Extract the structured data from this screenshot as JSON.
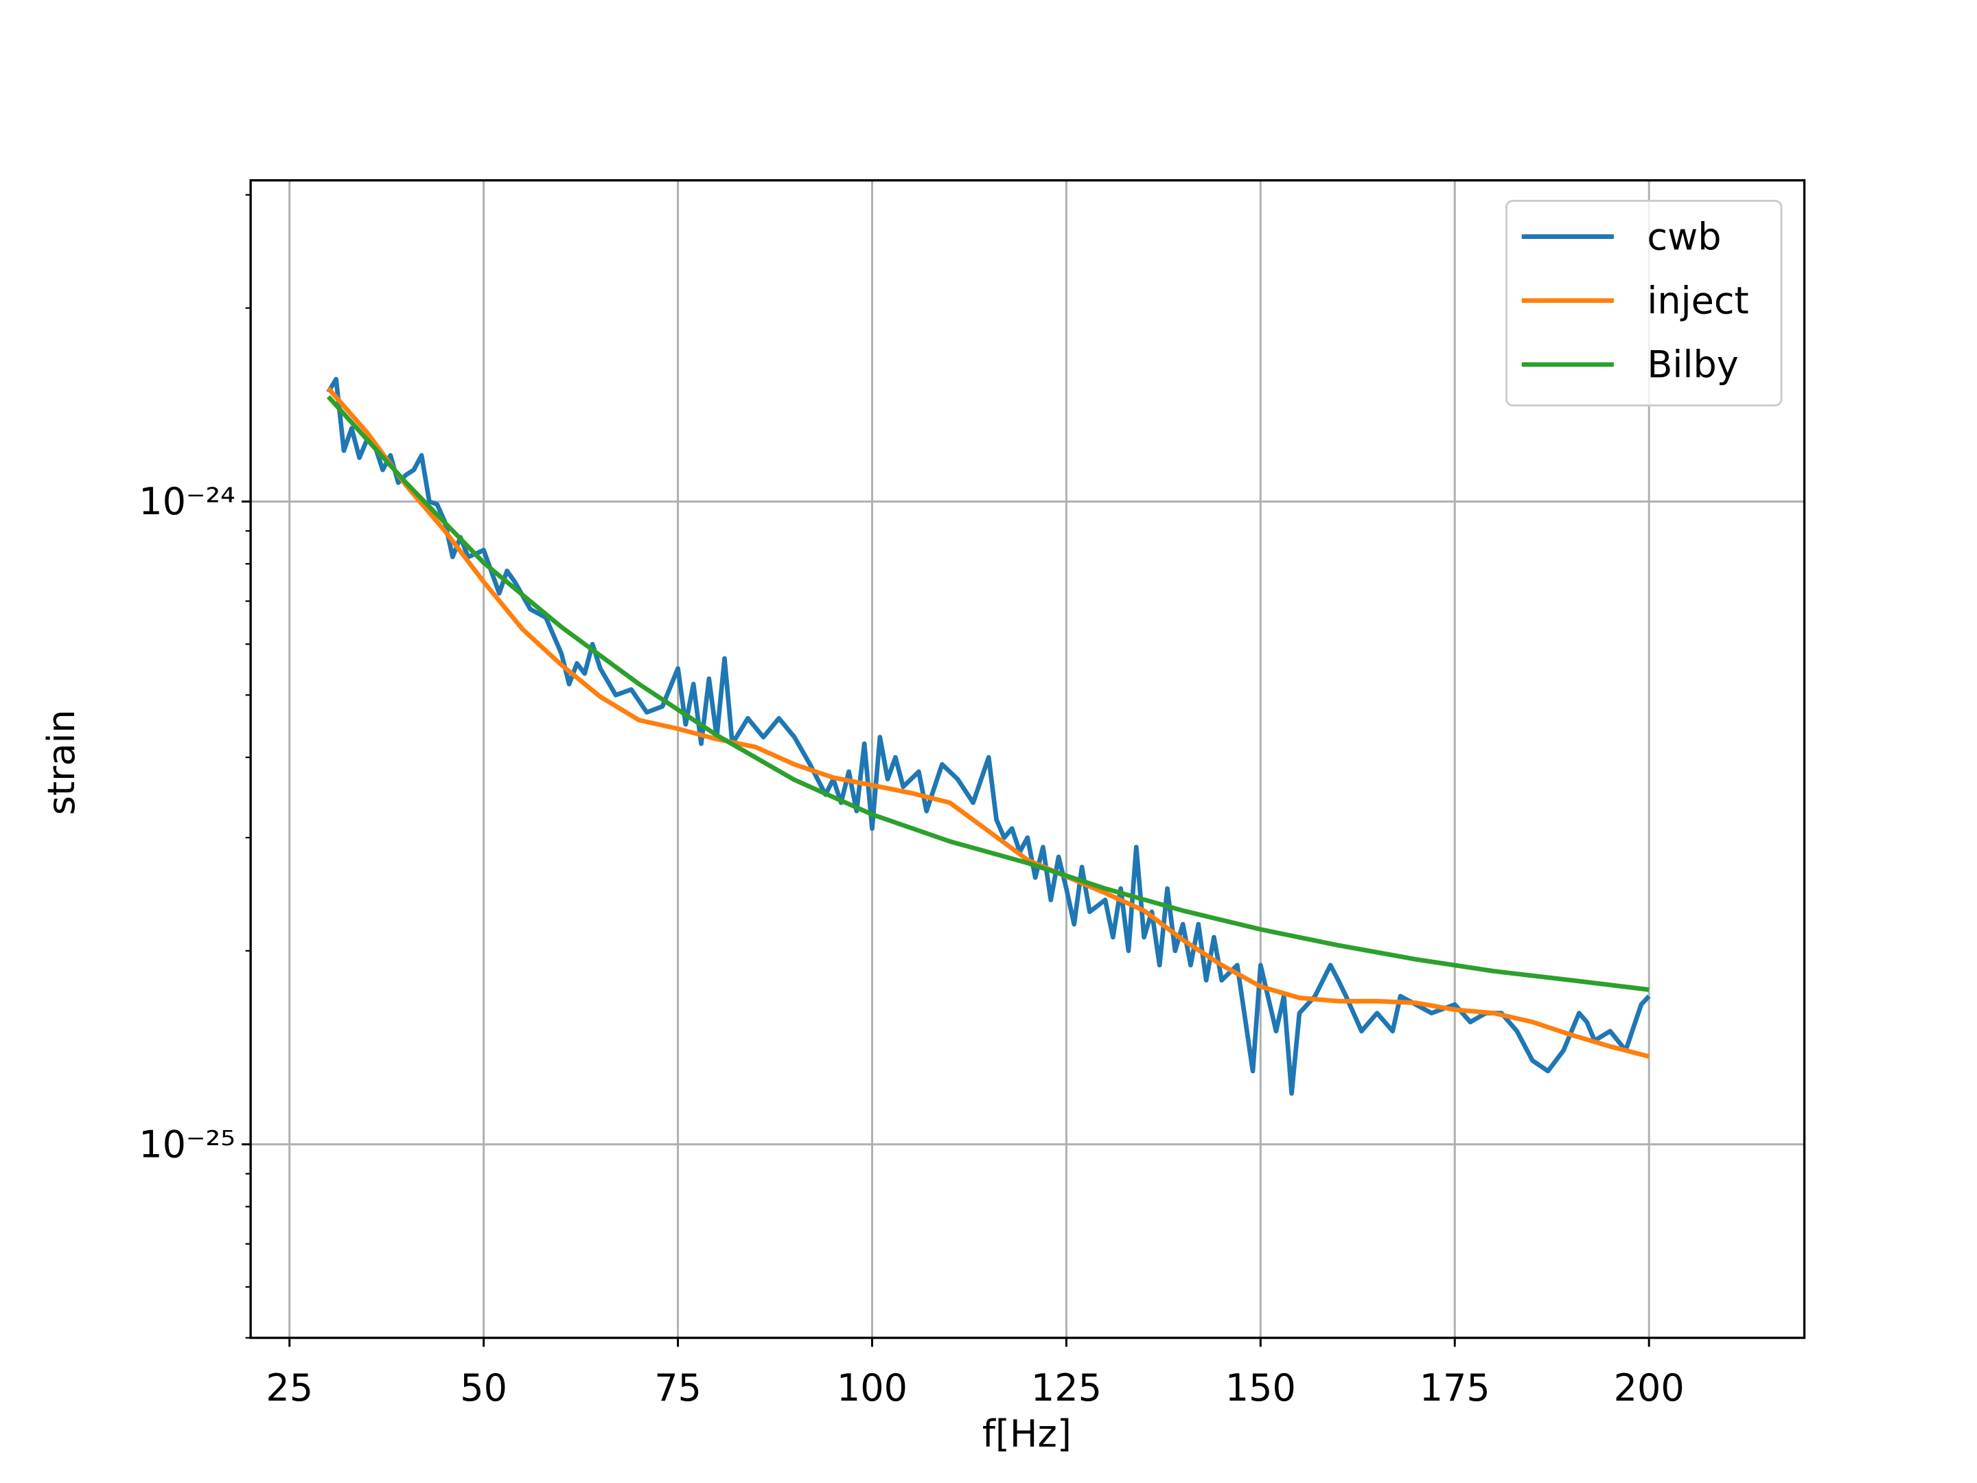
{
  "chart_data": {
    "type": "line",
    "xlabel": "f[Hz]",
    "ylabel": "strain",
    "xlim": [
      20,
      220
    ],
    "xticks": [
      25,
      50,
      75,
      100,
      125,
      150,
      175,
      200
    ],
    "ylim": [
      5e-26,
      3.16e-24
    ],
    "log_y": true,
    "yticks": [
      {
        "value": 1e-25,
        "label": "10⁻²⁵"
      },
      {
        "value": 1e-24,
        "label": "10⁻²⁴"
      }
    ],
    "yminor_ticks": [
      5e-26,
      6e-26,
      7e-26,
      8e-26,
      9e-26,
      2e-25,
      3e-25,
      4e-25,
      5e-25,
      6e-25,
      7e-25,
      8e-25,
      9e-25,
      2e-24,
      3e-24
    ],
    "grid": true,
    "legend": "upper right",
    "series": [
      {
        "name": "cwb",
        "color": "#1f77b4",
        "x": [
          30,
          31,
          32,
          33,
          34,
          35,
          36,
          37,
          38,
          39,
          40,
          41,
          42,
          43,
          44,
          45,
          46,
          47,
          48,
          50,
          52,
          53,
          54,
          56,
          58,
          60,
          61,
          62,
          63,
          64,
          65,
          67,
          69,
          71,
          73,
          75,
          76,
          77,
          78,
          79,
          80,
          81,
          82,
          84,
          86,
          88,
          90,
          92,
          94,
          95,
          96,
          97,
          98,
          99,
          100,
          101,
          102,
          103,
          104,
          106,
          107,
          109,
          111,
          113,
          115,
          116,
          117,
          118,
          119,
          120,
          121,
          122,
          123,
          124,
          125,
          126,
          127,
          128,
          130,
          131,
          132,
          133,
          134,
          135,
          136,
          137,
          138,
          139,
          140,
          141,
          142,
          143,
          144,
          145,
          147,
          149,
          150,
          152,
          153,
          154,
          155,
          157,
          159,
          160,
          161,
          163,
          165,
          167,
          168,
          170,
          172,
          175,
          177,
          179,
          181,
          183,
          185,
          187,
          189,
          191,
          192,
          193,
          195,
          197,
          199,
          200
        ],
        "values": [
          1.48e-24,
          1.55e-24,
          1.2e-24,
          1.3e-24,
          1.17e-24,
          1.25e-24,
          1.22e-24,
          1.12e-24,
          1.18e-24,
          1.07e-24,
          1.1e-24,
          1.12e-24,
          1.18e-24,
          1e-24,
          9.9e-25,
          9.3e-25,
          8.2e-25,
          8.8e-25,
          8.2e-25,
          8.4e-25,
          7.2e-25,
          7.8e-25,
          7.5e-25,
          6.8e-25,
          6.6e-25,
          5.8e-25,
          5.2e-25,
          5.6e-25,
          5.4e-25,
          6e-25,
          5.5e-25,
          5e-25,
          5.1e-25,
          4.7e-25,
          4.8e-25,
          5.5e-25,
          4.5e-25,
          5.2e-25,
          4.2e-25,
          5.3e-25,
          4.3e-25,
          5.7e-25,
          4.2e-25,
          4.6e-25,
          4.3e-25,
          4.6e-25,
          4.3e-25,
          3.9e-25,
          3.5e-25,
          3.7e-25,
          3.4e-25,
          3.8e-25,
          3.3e-25,
          4.2e-25,
          3.1e-25,
          4.3e-25,
          3.7e-25,
          4e-25,
          3.6e-25,
          3.8e-25,
          3.3e-25,
          3.9e-25,
          3.7e-25,
          3.4e-25,
          4e-25,
          3.2e-25,
          3e-25,
          3.1e-25,
          2.85e-25,
          3e-25,
          2.6e-25,
          2.9e-25,
          2.4e-25,
          2.8e-25,
          2.5e-25,
          2.2e-25,
          2.7e-25,
          2.3e-25,
          2.4e-25,
          2.1e-25,
          2.5e-25,
          2e-25,
          2.9e-25,
          2.1e-25,
          2.3e-25,
          1.9e-25,
          2.5e-25,
          2e-25,
          2.2e-25,
          1.9e-25,
          2.2e-25,
          1.8e-25,
          2.1e-25,
          1.8e-25,
          1.9e-25,
          1.3e-25,
          1.9e-25,
          1.5e-25,
          1.7e-25,
          1.2e-25,
          1.6e-25,
          1.7e-25,
          1.9e-25,
          1.8e-25,
          1.7e-25,
          1.5e-25,
          1.6e-25,
          1.5e-25,
          1.7e-25,
          1.65e-25,
          1.6e-25,
          1.65e-25,
          1.55e-25,
          1.6e-25,
          1.6e-25,
          1.5e-25,
          1.35e-25,
          1.3e-25,
          1.4e-25,
          1.6e-25,
          1.55e-25,
          1.45e-25,
          1.5e-25,
          1.4e-25,
          1.65e-25,
          1.7e-25
        ]
      },
      {
        "name": "inject",
        "color": "#ff7f0e",
        "x": [
          30,
          35,
          40,
          45,
          50,
          55,
          60,
          65,
          70,
          75,
          80,
          85,
          90,
          95,
          100,
          105,
          110,
          115,
          120,
          125,
          130,
          135,
          140,
          145,
          150,
          155,
          160,
          165,
          170,
          175,
          180,
          185,
          190,
          195,
          200
        ],
        "values": [
          1.5e-24,
          1.28e-24,
          1.06e-24,
          9e-25,
          7.5e-25,
          6.33e-25,
          5.57e-25,
          4.97e-25,
          4.57e-25,
          4.43e-25,
          4.27e-25,
          4.15e-25,
          3.9e-25,
          3.72e-25,
          3.62e-25,
          3.52e-25,
          3.4e-25,
          3.07e-25,
          2.77e-25,
          2.61e-25,
          2.46e-25,
          2.31e-25,
          2.08e-25,
          1.9e-25,
          1.76e-25,
          1.69e-25,
          1.67e-25,
          1.67e-25,
          1.66e-25,
          1.62e-25,
          1.6e-25,
          1.55e-25,
          1.48e-25,
          1.42e-25,
          1.37e-25
        ]
      },
      {
        "name": "Bilby",
        "color": "#2ca02c",
        "x": [
          30,
          40,
          50,
          60,
          70,
          80,
          90,
          100,
          110,
          120,
          130,
          140,
          150,
          160,
          170,
          180,
          190,
          200
        ],
        "values": [
          1.456e-24,
          1.07e-24,
          8.03e-25,
          6.38e-25,
          5.2e-25,
          4.33e-25,
          3.69e-25,
          3.26e-25,
          2.96e-25,
          2.74e-25,
          2.5e-25,
          2.31e-25,
          2.16e-25,
          2.04e-25,
          1.94e-25,
          1.86e-25,
          1.8e-25,
          1.74e-25
        ]
      }
    ]
  }
}
